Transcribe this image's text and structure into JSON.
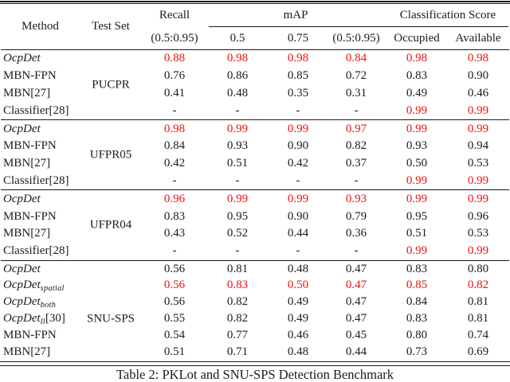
{
  "colors": {
    "highlight": "#ee1111",
    "text": "#1b1b1b",
    "rule": "#1a1a1a"
  },
  "header": {
    "method": "Method",
    "test_set": "Test Set",
    "recall": "Recall",
    "recall_sub": "(0.5:0.95)",
    "map": "mAP",
    "map_subs": [
      "0.5",
      "0.75",
      "(0.5:0.95)"
    ],
    "classification": "Classification Score",
    "classification_subs": [
      "Occupied",
      "Available"
    ]
  },
  "groups": [
    {
      "test_set": "PUCPR",
      "rows": [
        {
          "method": {
            "name": "OcpDet",
            "italic": true,
            "sub": "",
            "ref": ""
          },
          "values": [
            "0.88",
            "0.98",
            "0.98",
            "0.84",
            "0.98",
            "0.98"
          ],
          "red": [
            1,
            1,
            1,
            1,
            1,
            1
          ]
        },
        {
          "method": {
            "name": "MBN-FPN",
            "italic": false,
            "sub": "",
            "ref": ""
          },
          "values": [
            "0.76",
            "0.86",
            "0.85",
            "0.72",
            "0.83",
            "0.90"
          ],
          "red": [
            0,
            0,
            0,
            0,
            0,
            0
          ]
        },
        {
          "method": {
            "name": "MBN",
            "italic": false,
            "sub": "",
            "ref": "[27]"
          },
          "values": [
            "0.41",
            "0.48",
            "0.35",
            "0.31",
            "0.49",
            "0.46"
          ],
          "red": [
            0,
            0,
            0,
            0,
            0,
            0
          ]
        },
        {
          "method": {
            "name": "Classifier",
            "italic": false,
            "sub": "",
            "ref": "[28]"
          },
          "values": [
            "-",
            "-",
            "-",
            "-",
            "0.99",
            "0.99"
          ],
          "red": [
            0,
            0,
            0,
            0,
            1,
            1
          ]
        }
      ]
    },
    {
      "test_set": "UFPR05",
      "rows": [
        {
          "method": {
            "name": "OcpDet",
            "italic": true,
            "sub": "",
            "ref": ""
          },
          "values": [
            "0.98",
            "0.99",
            "0.99",
            "0.97",
            "0.99",
            "0.99"
          ],
          "red": [
            1,
            1,
            1,
            1,
            1,
            1
          ]
        },
        {
          "method": {
            "name": "MBN-FPN",
            "italic": false,
            "sub": "",
            "ref": ""
          },
          "values": [
            "0.84",
            "0.93",
            "0.90",
            "0.82",
            "0.93",
            "0.94"
          ],
          "red": [
            0,
            0,
            0,
            0,
            0,
            0
          ]
        },
        {
          "method": {
            "name": "MBN",
            "italic": false,
            "sub": "",
            "ref": "[27]"
          },
          "values": [
            "0.42",
            "0.51",
            "0.42",
            "0.37",
            "0.50",
            "0.53"
          ],
          "red": [
            0,
            0,
            0,
            0,
            0,
            0
          ]
        },
        {
          "method": {
            "name": "Classifier",
            "italic": false,
            "sub": "",
            "ref": "[28]"
          },
          "values": [
            "-",
            "-",
            "-",
            "-",
            "0.99",
            "0.99"
          ],
          "red": [
            0,
            0,
            0,
            0,
            1,
            1
          ]
        }
      ]
    },
    {
      "test_set": "UFPR04",
      "rows": [
        {
          "method": {
            "name": "OcpDet",
            "italic": true,
            "sub": "",
            "ref": ""
          },
          "values": [
            "0.96",
            "0.99",
            "0.99",
            "0.93",
            "0.99",
            "0.99"
          ],
          "red": [
            1,
            1,
            1,
            1,
            1,
            1
          ]
        },
        {
          "method": {
            "name": "MBN-FPN",
            "italic": false,
            "sub": "",
            "ref": ""
          },
          "values": [
            "0.83",
            "0.95",
            "0.90",
            "0.79",
            "0.95",
            "0.96"
          ],
          "red": [
            0,
            0,
            0,
            0,
            0,
            0
          ]
        },
        {
          "method": {
            "name": "MBN",
            "italic": false,
            "sub": "",
            "ref": "[27]"
          },
          "values": [
            "0.43",
            "0.52",
            "0.44",
            "0.36",
            "0.51",
            "0.53"
          ],
          "red": [
            0,
            0,
            0,
            0,
            0,
            0
          ]
        },
        {
          "method": {
            "name": "Classifier",
            "italic": false,
            "sub": "",
            "ref": "[28]"
          },
          "values": [
            "-",
            "-",
            "-",
            "-",
            "0.99",
            "0.99"
          ],
          "red": [
            0,
            0,
            0,
            0,
            1,
            1
          ]
        }
      ]
    },
    {
      "test_set": "SNU-SPS",
      "rows": [
        {
          "method": {
            "name": "OcpDet",
            "italic": true,
            "sub": "",
            "ref": ""
          },
          "values": [
            "0.56",
            "0.81",
            "0.48",
            "0.47",
            "0.83",
            "0.80"
          ],
          "red": [
            0,
            0,
            0,
            0,
            0,
            0
          ]
        },
        {
          "method": {
            "name": "OcpDet",
            "italic": true,
            "sub": "spatial",
            "ref": ""
          },
          "values": [
            "0.56",
            "0.83",
            "0.50",
            "0.47",
            "0.85",
            "0.82"
          ],
          "red": [
            1,
            1,
            1,
            1,
            1,
            1
          ]
        },
        {
          "method": {
            "name": "OcpDet",
            "italic": true,
            "sub": "both",
            "ref": ""
          },
          "values": [
            "0.56",
            "0.82",
            "0.49",
            "0.47",
            "0.84",
            "0.81"
          ],
          "red": [
            0,
            0,
            0,
            0,
            0,
            0
          ]
        },
        {
          "method": {
            "name": "OcpDet",
            "italic": true,
            "sub": "ll",
            "ref": "[30]"
          },
          "values": [
            "0.55",
            "0.82",
            "0.49",
            "0.47",
            "0.83",
            "0.81"
          ],
          "red": [
            0,
            0,
            0,
            0,
            0,
            0
          ]
        },
        {
          "method": {
            "name": "MBN-FPN",
            "italic": false,
            "sub": "",
            "ref": ""
          },
          "values": [
            "0.54",
            "0.77",
            "0.46",
            "0.45",
            "0.80",
            "0.74"
          ],
          "red": [
            0,
            0,
            0,
            0,
            0,
            0
          ]
        },
        {
          "method": {
            "name": "MBN",
            "italic": false,
            "sub": "",
            "ref": "[27]"
          },
          "values": [
            "0.51",
            "0.71",
            "0.48",
            "0.44",
            "0.73",
            "0.69"
          ],
          "red": [
            0,
            0,
            0,
            0,
            0,
            0
          ]
        }
      ]
    }
  ],
  "caption": "Table 2: PKLot and SNU-SPS Detection Benchmark"
}
